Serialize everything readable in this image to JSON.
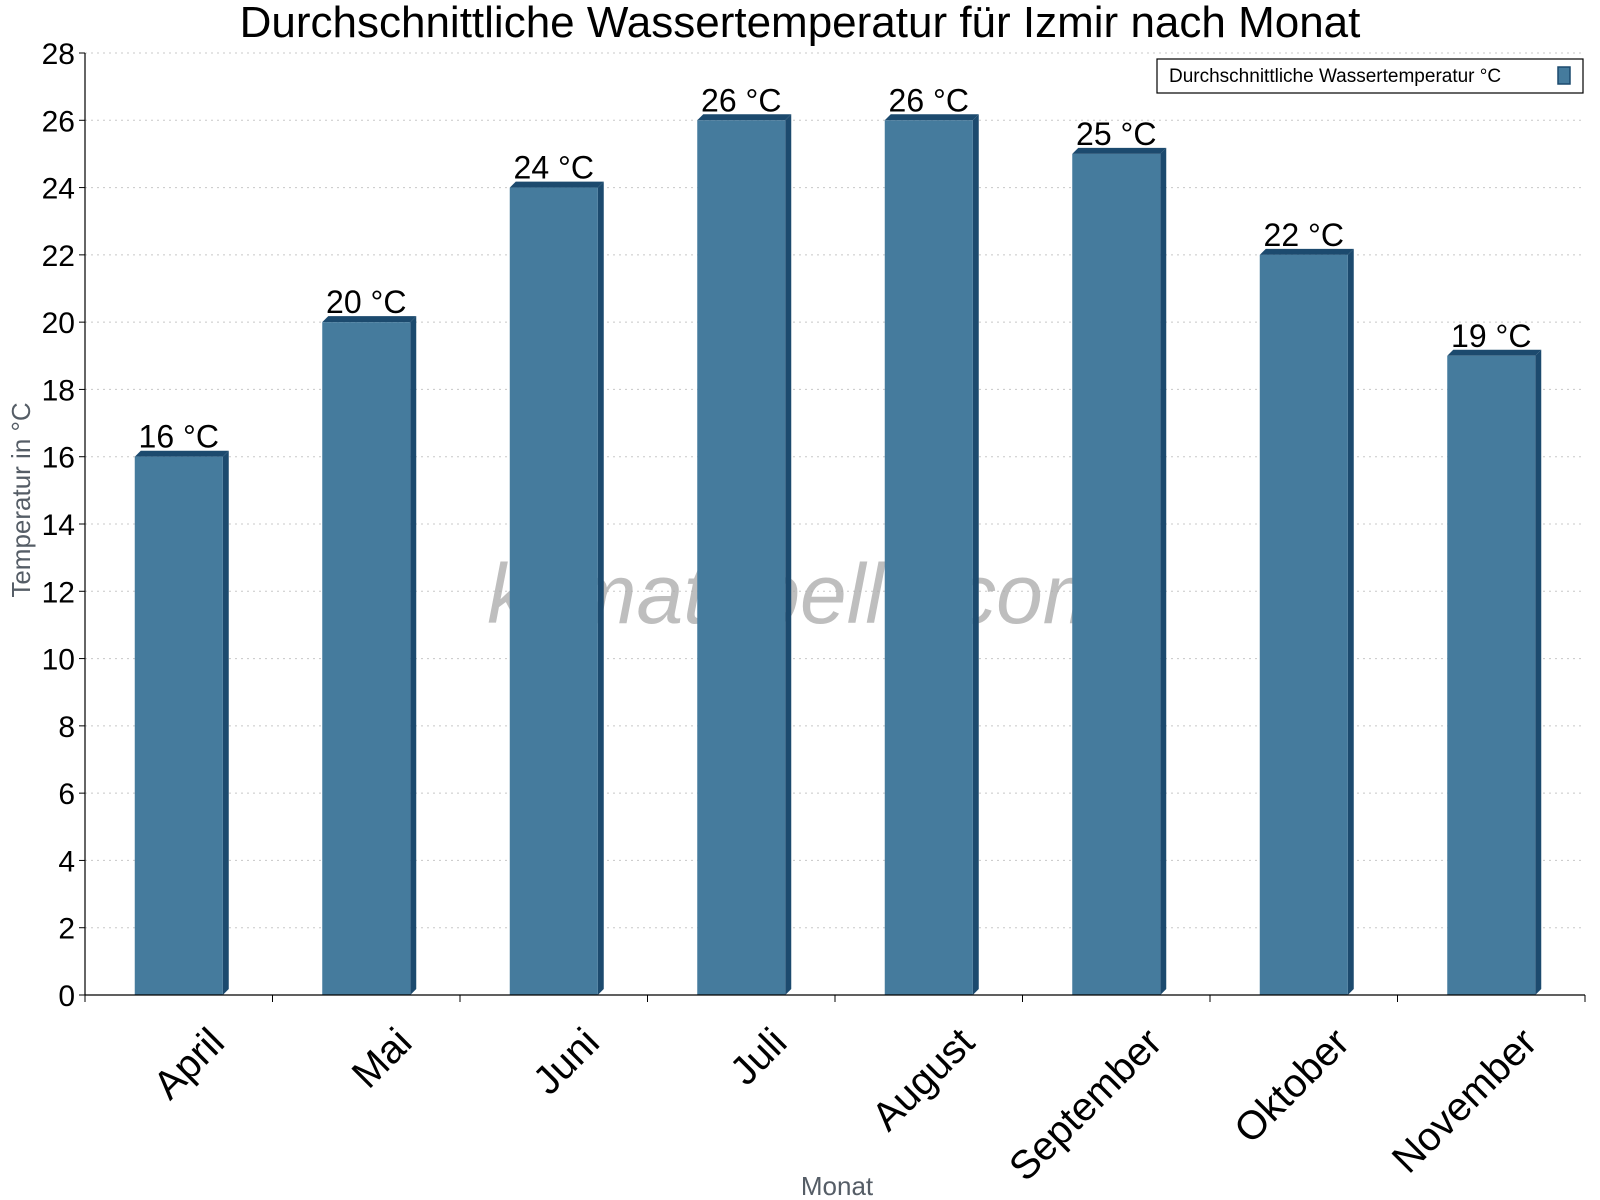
{
  "chart_data": {
    "type": "bar",
    "title": "Durchschnittliche Wassertemperatur für Izmir nach Monat",
    "xlabel": "Monat",
    "ylabel": "Temperatur in °C",
    "categories": [
      "April",
      "Mai",
      "Juni",
      "Juli",
      "August",
      "September",
      "Oktober",
      "November"
    ],
    "series": [
      {
        "name": "Durchschnittliche Wassertemperatur °C",
        "values": [
          16,
          20,
          24,
          26,
          26,
          25,
          22,
          19
        ],
        "labels": [
          "16 °C",
          "20 °C",
          "24 °C",
          "26 °C",
          "26 °C",
          "25 °C",
          "22 °C",
          "19 °C"
        ],
        "color": "#457b9d",
        "edge_color": "#1c4a6e"
      }
    ],
    "ylim": [
      0,
      28
    ],
    "yticks": [
      0,
      2,
      4,
      6,
      8,
      10,
      12,
      14,
      16,
      18,
      20,
      22,
      24,
      26,
      28
    ],
    "grid": true,
    "legend_position": "top-right",
    "watermark": "klimatabelle.com"
  }
}
